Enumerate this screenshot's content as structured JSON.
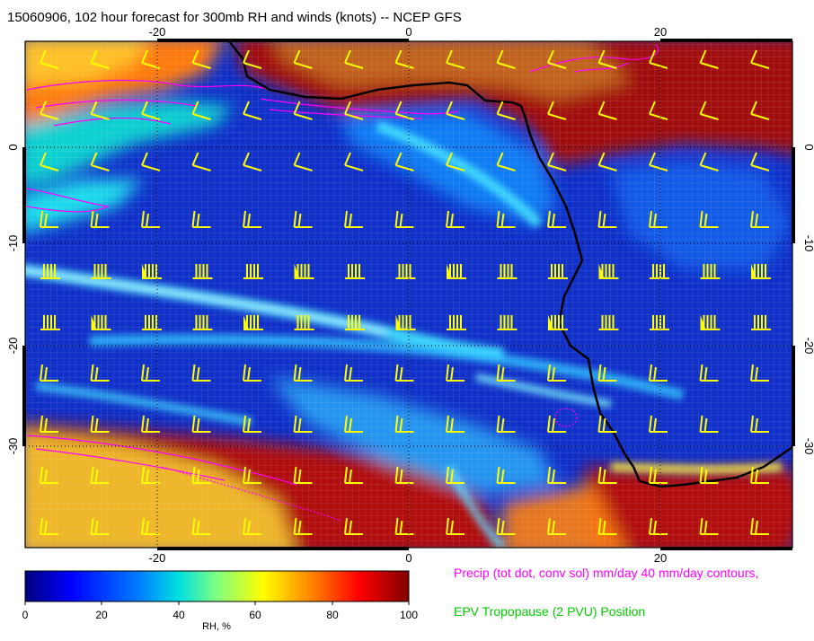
{
  "title": "15060906, 102 hour forecast for 300mb RH and winds (knots) -- NCEP GFS",
  "map": {
    "lon_range": [
      -30,
      31
    ],
    "lat_range": [
      -40,
      10
    ],
    "lon_ticks": [
      "-20",
      "0",
      "20"
    ],
    "lat_ticks": [
      "0",
      "-10",
      "-20",
      "-30"
    ],
    "barb_color": "#ffff00",
    "coast_color": "#000000",
    "precip_color": "#ff00ff"
  },
  "colorbar": {
    "ticks": [
      "0",
      "20",
      "40",
      "60",
      "80",
      "100"
    ],
    "title": "RH, %"
  },
  "legend": {
    "precip_text": "Precip (tot dot, conv sol) mm/day 40 mm/day contours,",
    "precip_color": "#ff00ff",
    "epv_text": "EPV Tropopause (2 PVU) Position",
    "epv_color": "#00cc00"
  }
}
